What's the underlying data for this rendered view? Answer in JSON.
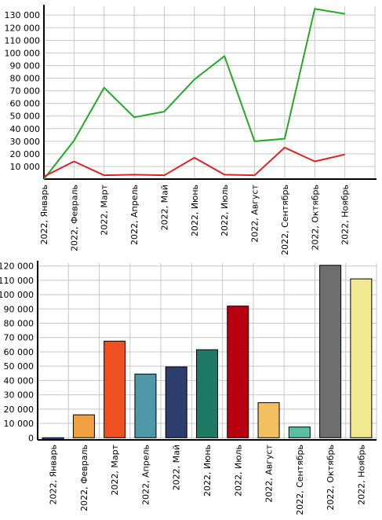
{
  "chart_data": [
    {
      "type": "line",
      "title": "",
      "xlabel": "",
      "ylabel": "",
      "ylim": [
        0,
        137000
      ],
      "grid": true,
      "legend": "none",
      "categories": [
        "2022, Январь",
        "2022, Февраль",
        "2022, Март",
        "2022, Апрель",
        "2022, Май",
        "2022, Июнь",
        "2022, Июль",
        "2022, Август",
        "2022, Сентябрь",
        "2022, Октябрь",
        "2022, Ноябрь"
      ],
      "yticks": [
        10000,
        20000,
        30000,
        40000,
        50000,
        60000,
        70000,
        80000,
        90000,
        100000,
        110000,
        120000,
        130000
      ],
      "ytick_labels": [
        "10 000",
        "20 000",
        "30 000",
        "40 000",
        "50 000",
        "60 000",
        "70 000",
        "80 000",
        "90 000",
        "100 000",
        "110 000",
        "120 000",
        "130 000"
      ],
      "series": [
        {
          "color": "#22aa22",
          "values": [
            0,
            30500,
            72500,
            49000,
            53500,
            79000,
            97500,
            30000,
            32000,
            135000,
            131000
          ]
        },
        {
          "color": "#dd2222",
          "values": [
            2000,
            14000,
            3000,
            3500,
            3000,
            17000,
            3500,
            3000,
            25000,
            14000,
            19500
          ]
        }
      ]
    },
    {
      "type": "bar",
      "title": "",
      "xlabel": "",
      "ylabel": "",
      "ylim": [
        -1500,
        122000
      ],
      "grid": true,
      "legend": "none",
      "categories": [
        "2022, Январь",
        "2022, Февраль",
        "2022, Март",
        "2022, Апрель",
        "2022, Май",
        "2022, Июнь",
        "2022, Июль",
        "2022, Август",
        "2022, Сентябрь",
        "2022, Октябрь",
        "2022, Ноябрь"
      ],
      "yticks": [
        0,
        10000,
        20000,
        30000,
        40000,
        50000,
        60000,
        70000,
        80000,
        90000,
        100000,
        110000,
        120000
      ],
      "ytick_labels": [
        "0",
        "10 000",
        "20 000",
        "30 000",
        "40 000",
        "50 000",
        "60 000",
        "70 000",
        "80 000",
        "90 000",
        "100 000",
        "110 000",
        "120 000"
      ],
      "values": [
        -1500,
        16000,
        67500,
        44500,
        49500,
        61500,
        92000,
        24500,
        7500,
        120500,
        111000
      ],
      "colors": [
        "#2e4a8c",
        "#f0a040",
        "#f05020",
        "#4e98a8",
        "#2c3e6e",
        "#1e7a64",
        "#b8000e",
        "#f2c060",
        "#5ac0a0",
        "#6e6e6e",
        "#f2e890"
      ]
    }
  ]
}
